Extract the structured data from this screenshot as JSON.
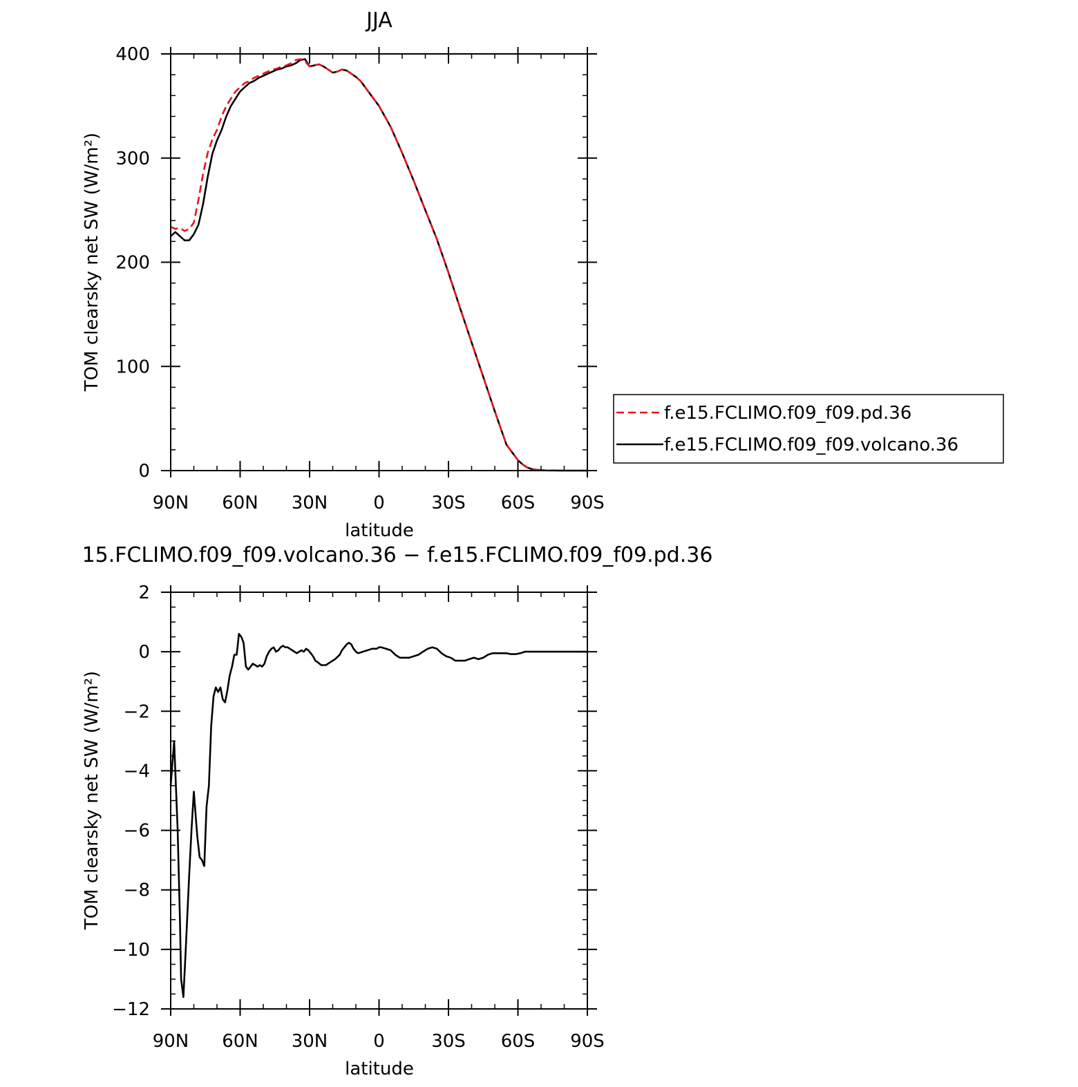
{
  "chart_data": [
    {
      "type": "line",
      "title": "JJA",
      "xlabel": "latitude",
      "ylabel": "TOM clearsky net SW (W/m²)",
      "xlim": [
        90,
        -90
      ],
      "ylim": [
        0,
        400
      ],
      "x_ticks": [
        {
          "value": 90,
          "label": "90N"
        },
        {
          "value": 60,
          "label": "60N"
        },
        {
          "value": 30,
          "label": "30N"
        },
        {
          "value": 0,
          "label": "0"
        },
        {
          "value": -30,
          "label": "30S"
        },
        {
          "value": -60,
          "label": "60S"
        },
        {
          "value": -90,
          "label": "90S"
        }
      ],
      "y_ticks": [
        {
          "value": 0,
          "label": "0"
        },
        {
          "value": 100,
          "label": "100"
        },
        {
          "value": 200,
          "label": "200"
        },
        {
          "value": 300,
          "label": "300"
        },
        {
          "value": 400,
          "label": "400"
        }
      ],
      "legend_position": "right",
      "grid": false,
      "series": [
        {
          "name": "f.e15.FCLIMO.f09_f09.pd.36",
          "color": "#e8141c",
          "dash": "dashed",
          "x": [
            90,
            88,
            86,
            84,
            82,
            80,
            78,
            76,
            74,
            72,
            70,
            68,
            66,
            64,
            62,
            60,
            58,
            56,
            54,
            52,
            50,
            48,
            46,
            44,
            42,
            40,
            38,
            36,
            34,
            32,
            30,
            28,
            26,
            24,
            22,
            20,
            18,
            16,
            14,
            12,
            10,
            8,
            6,
            4,
            2,
            0,
            -5,
            -10,
            -15,
            -20,
            -25,
            -30,
            -35,
            -40,
            -45,
            -50,
            -55,
            -60,
            -62,
            -64,
            -66,
            -68,
            -70,
            -72,
            -75,
            -80,
            -85,
            -90
          ],
          "y": [
            234,
            232,
            233,
            230,
            232,
            238,
            260,
            285,
            305,
            318,
            327,
            340,
            350,
            357,
            364,
            368,
            372,
            374,
            377,
            379,
            381,
            383,
            385,
            386,
            388,
            389,
            391,
            394,
            395,
            393,
            388,
            389,
            390,
            388,
            385,
            382,
            383,
            385,
            384,
            381,
            378,
            374,
            368,
            362,
            356,
            350,
            330,
            305,
            278,
            250,
            222,
            190,
            156,
            123,
            90,
            57,
            25,
            10,
            6,
            3,
            1.5,
            0.8,
            0.4,
            0.2,
            0.1,
            0,
            0,
            0
          ]
        },
        {
          "name": "f.e15.FCLIMO.f09_f09.volcano.36",
          "color": "#000000",
          "dash": "solid",
          "x": [
            90,
            88,
            86,
            84,
            82,
            80,
            78,
            76,
            74,
            72,
            70,
            68,
            66,
            64,
            62,
            60,
            58,
            56,
            54,
            52,
            50,
            48,
            46,
            44,
            42,
            40,
            38,
            36,
            34,
            32,
            30,
            28,
            26,
            24,
            22,
            20,
            18,
            16,
            14,
            12,
            10,
            8,
            6,
            4,
            2,
            0,
            -5,
            -10,
            -15,
            -20,
            -25,
            -30,
            -35,
            -40,
            -45,
            -50,
            -55,
            -60,
            -62,
            -64,
            -66,
            -68,
            -70,
            -72,
            -75,
            -80,
            -85,
            -90
          ],
          "y": [
            225,
            229,
            225,
            221,
            221,
            227,
            236,
            256,
            282,
            304,
            317,
            327,
            340,
            350,
            357,
            364,
            368,
            372,
            374,
            377,
            379,
            381,
            383,
            385,
            386,
            388,
            389,
            391,
            394,
            395,
            388,
            389,
            390,
            388,
            385,
            382,
            383,
            385,
            384,
            381,
            378,
            374,
            368,
            362,
            356,
            350,
            330,
            305,
            278,
            250,
            222,
            190,
            156,
            123,
            90,
            57,
            25,
            10,
            6,
            3,
            1.5,
            0.8,
            0.4,
            0.2,
            0.1,
            0,
            0,
            0
          ]
        }
      ]
    },
    {
      "type": "line",
      "title": "15.FCLIMO.f09_f09.volcano.36 − f.e15.FCLIMO.f09_f09.pd.36",
      "xlabel": "latitude",
      "ylabel": "TOM clearsky net SW (W/m²)",
      "xlim": [
        90,
        -90
      ],
      "ylim": [
        -12,
        2
      ],
      "x_ticks": [
        {
          "value": 90,
          "label": "90N"
        },
        {
          "value": 60,
          "label": "60N"
        },
        {
          "value": 30,
          "label": "30N"
        },
        {
          "value": 0,
          "label": "0"
        },
        {
          "value": -30,
          "label": "30S"
        },
        {
          "value": -60,
          "label": "60S"
        },
        {
          "value": -90,
          "label": "90S"
        }
      ],
      "y_ticks": [
        {
          "value": 2,
          "label": "2"
        },
        {
          "value": 0,
          "label": "0"
        },
        {
          "value": -2,
          "label": "−2"
        },
        {
          "value": -4,
          "label": "−4"
        },
        {
          "value": -6,
          "label": "−6"
        },
        {
          "value": -8,
          "label": "−8"
        },
        {
          "value": -10,
          "label": "−10"
        },
        {
          "value": -12,
          "label": "−12"
        }
      ],
      "grid": false,
      "series": [
        {
          "color": "#000000",
          "dash": "solid",
          "x": [
            90,
            88.5,
            87,
            86,
            85.5,
            84.5,
            83.5,
            82,
            81,
            80,
            78.5,
            77.5,
            76.5,
            75.5,
            74.5,
            73.5,
            72.5,
            71.5,
            70.5,
            69.5,
            68.5,
            67.5,
            66.5,
            65.5,
            64.5,
            63.5,
            62.5,
            61.5,
            60.5,
            59.5,
            58.5,
            57.5,
            56.5,
            55.5,
            54.5,
            53.5,
            52.5,
            51.5,
            50.5,
            49.5,
            48.5,
            47.5,
            46.5,
            45.5,
            44.5,
            43.5,
            42.5,
            41.5,
            40.5,
            39.5,
            38.5,
            37.5,
            36.5,
            35.5,
            34.5,
            33.5,
            32.5,
            31.5,
            30.5,
            29.5,
            28.5,
            27.5,
            26.5,
            25,
            23,
            21,
            19,
            17,
            16,
            15,
            14,
            13,
            12,
            11,
            10,
            9,
            7,
            5,
            3,
            1,
            0,
            -1,
            -3,
            -5,
            -7,
            -9,
            -11,
            -13,
            -15,
            -17,
            -19,
            -21,
            -23,
            -25,
            -27,
            -29,
            -31,
            -33,
            -35,
            -37,
            -39,
            -41,
            -43,
            -45,
            -47,
            -49,
            -51,
            -53,
            -55,
            -57,
            -59,
            -61,
            -63,
            -65,
            -67,
            -70,
            -75,
            -80,
            -85,
            -90
          ],
          "y": [
            -4.5,
            -3.0,
            -6.0,
            -9.0,
            -11.0,
            -11.6,
            -10.0,
            -7.5,
            -6.0,
            -4.7,
            -6.2,
            -6.9,
            -7.0,
            -7.2,
            -5.2,
            -4.5,
            -2.5,
            -1.5,
            -1.2,
            -1.35,
            -1.2,
            -1.6,
            -1.7,
            -1.3,
            -0.8,
            -0.5,
            -0.1,
            -0.1,
            0.6,
            0.5,
            0.3,
            -0.5,
            -0.6,
            -0.5,
            -0.4,
            -0.45,
            -0.5,
            -0.45,
            -0.5,
            -0.4,
            -0.15,
            0.0,
            0.1,
            0.15,
            0.0,
            0.05,
            0.15,
            0.2,
            0.15,
            0.15,
            0.1,
            0.05,
            0.0,
            -0.05,
            0.0,
            0.05,
            0.0,
            0.1,
            0.05,
            -0.05,
            -0.15,
            -0.3,
            -0.35,
            -0.45,
            -0.45,
            -0.35,
            -0.25,
            -0.1,
            0.05,
            0.15,
            0.25,
            0.3,
            0.25,
            0.1,
            0.0,
            -0.05,
            0.0,
            0.05,
            0.1,
            0.1,
            0.15,
            0.15,
            0.1,
            0.05,
            -0.1,
            -0.2,
            -0.2,
            -0.2,
            -0.15,
            -0.1,
            0.0,
            0.1,
            0.15,
            0.1,
            -0.05,
            -0.15,
            -0.2,
            -0.3,
            -0.3,
            -0.3,
            -0.25,
            -0.2,
            -0.25,
            -0.2,
            -0.1,
            -0.05,
            -0.05,
            -0.05,
            -0.05,
            -0.08,
            -0.08,
            -0.05,
            0.0,
            0.0,
            0.0,
            0.0,
            0.0,
            0.0,
            0.0,
            0.0
          ]
        }
      ]
    }
  ]
}
